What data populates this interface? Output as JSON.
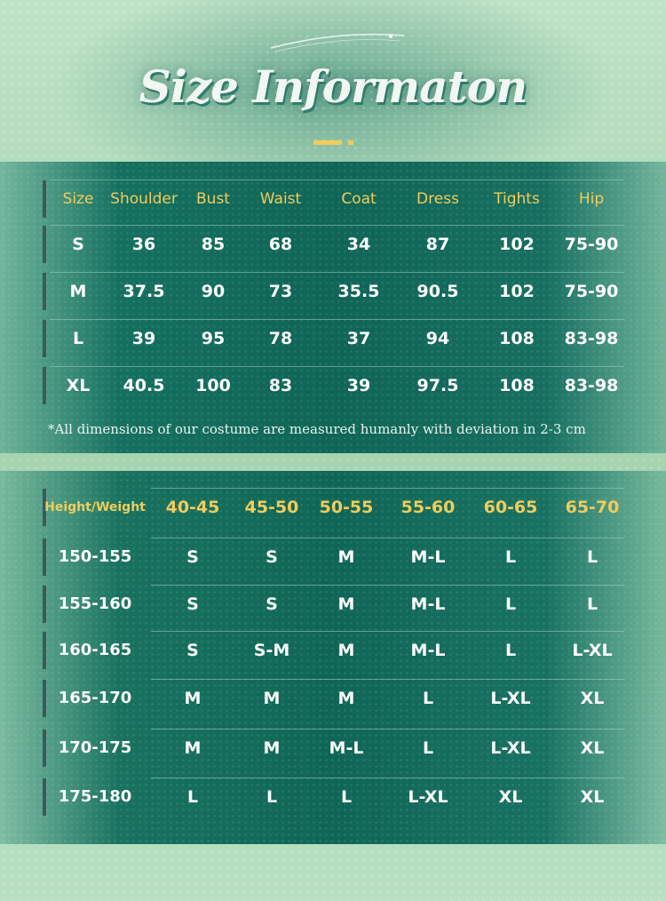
{
  "title": "Size Informaton",
  "colors": {
    "accent": "#f2cc5a",
    "panel": "#0f6556",
    "background": "#a9d6b3"
  },
  "size_table": {
    "headers": [
      "Size",
      "Shoulder",
      "Bust",
      "Waist",
      "Coat",
      "Dress",
      "Tights",
      "Hip"
    ],
    "rows": [
      [
        "S",
        "36",
        "85",
        "68",
        "34",
        "87",
        "102",
        "75-90"
      ],
      [
        "M",
        "37.5",
        "90",
        "73",
        "35.5",
        "90.5",
        "102",
        "75-90"
      ],
      [
        "L",
        "39",
        "95",
        "78",
        "37",
        "94",
        "108",
        "83-98"
      ],
      [
        "XL",
        "40.5",
        "100",
        "83",
        "39",
        "97.5",
        "108",
        "83-98"
      ]
    ],
    "note": "*All dimensions of our costume are measured humanly with deviation in 2-3 cm"
  },
  "fit_table": {
    "corner": "Height/Weight",
    "weights": [
      "40-45",
      "45-50",
      "50-55",
      "55-60",
      "60-65",
      "65-70"
    ],
    "rows": [
      {
        "height": "150-155",
        "sizes": [
          "S",
          "S",
          "M",
          "M-L",
          "L",
          "L"
        ]
      },
      {
        "height": "155-160",
        "sizes": [
          "S",
          "S",
          "M",
          "M-L",
          "L",
          "L"
        ]
      },
      {
        "height": "160-165",
        "sizes": [
          "S",
          "S-M",
          "M",
          "M-L",
          "L",
          "L-XL"
        ]
      },
      {
        "height": "165-170",
        "sizes": [
          "M",
          "M",
          "M",
          "L",
          "L-XL",
          "XL"
        ]
      },
      {
        "height": "170-175",
        "sizes": [
          "M",
          "M",
          "M-L",
          "L",
          "L-XL",
          "XL"
        ]
      },
      {
        "height": "175-180",
        "sizes": [
          "L",
          "L",
          "L",
          "L-XL",
          "XL",
          "XL"
        ]
      }
    ]
  }
}
